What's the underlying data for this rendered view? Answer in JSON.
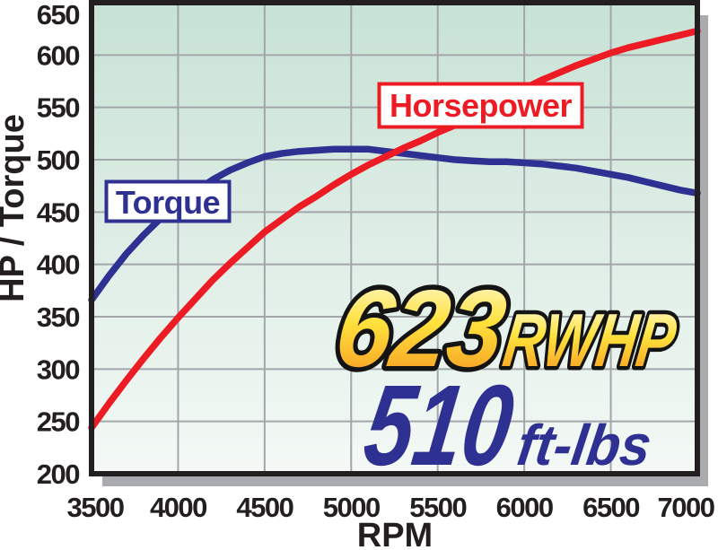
{
  "axes": {
    "y_label": "HP / Torque",
    "x_label": "RPM"
  },
  "series_labels": {
    "torque": "Torque",
    "horsepower": "Horsepower"
  },
  "callout": {
    "hp_value": "623",
    "hp_unit": "RWHP",
    "torque_value": "510",
    "torque_unit": "ft-lbs"
  },
  "colors": {
    "red": "#ed1c24",
    "blue": "#2e3192",
    "ink": "#231f20",
    "grid": "#a2a6aa",
    "shadow": "#a9abae",
    "bg_top": "#c8e2d5",
    "bg_bottom": "#f4f9f6",
    "gold_light": "#fffce8",
    "gold_mid": "#ffe23c",
    "gold_orange": "#f6911e",
    "box_fill": "#ffffff"
  },
  "chart_data": {
    "type": "line",
    "title": "",
    "xlabel": "RPM",
    "ylabel": "HP / Torque",
    "xlim": [
      3500,
      7000
    ],
    "ylim": [
      200,
      650
    ],
    "x_ticks": [
      3500,
      4000,
      4500,
      5000,
      5500,
      6000,
      6500,
      7000
    ],
    "y_ticks": [
      200,
      250,
      300,
      350,
      400,
      450,
      500,
      550,
      600,
      650
    ],
    "grid": true,
    "legend_position": "inline-boxes",
    "x": [
      3500,
      3600,
      3700,
      3800,
      3900,
      4000,
      4100,
      4200,
      4300,
      4400,
      4500,
      4600,
      4700,
      4800,
      4900,
      5000,
      5100,
      5200,
      5300,
      5400,
      5500,
      5600,
      5700,
      5800,
      5900,
      6000,
      6100,
      6200,
      6300,
      6400,
      6500,
      6600,
      6700,
      6800,
      6900,
      7000
    ],
    "series": [
      {
        "name": "Torque",
        "color": "#2e3192",
        "values": [
          366,
          389,
          410,
          428,
          444,
          458,
          470,
          481,
          490,
          497,
          503,
          506,
          508,
          509,
          510,
          510,
          510,
          508,
          506,
          504,
          502,
          500,
          499,
          498,
          498,
          497,
          496,
          494,
          492,
          489,
          486,
          483,
          479,
          475,
          471,
          468
        ]
      },
      {
        "name": "Horsepower",
        "color": "#ed1c24",
        "values": [
          244,
          267,
          289,
          310,
          330,
          349,
          367,
          385,
          401,
          416,
          431,
          443,
          455,
          465,
          476,
          486,
          495,
          503,
          511,
          518,
          526,
          533,
          542,
          550,
          560,
          568,
          576,
          583,
          590,
          596,
          602,
          607,
          611,
          615,
          619,
          623
        ]
      }
    ],
    "peaks": {
      "horsepower_rwhp": 623,
      "torque_ftlbs": 510
    }
  }
}
